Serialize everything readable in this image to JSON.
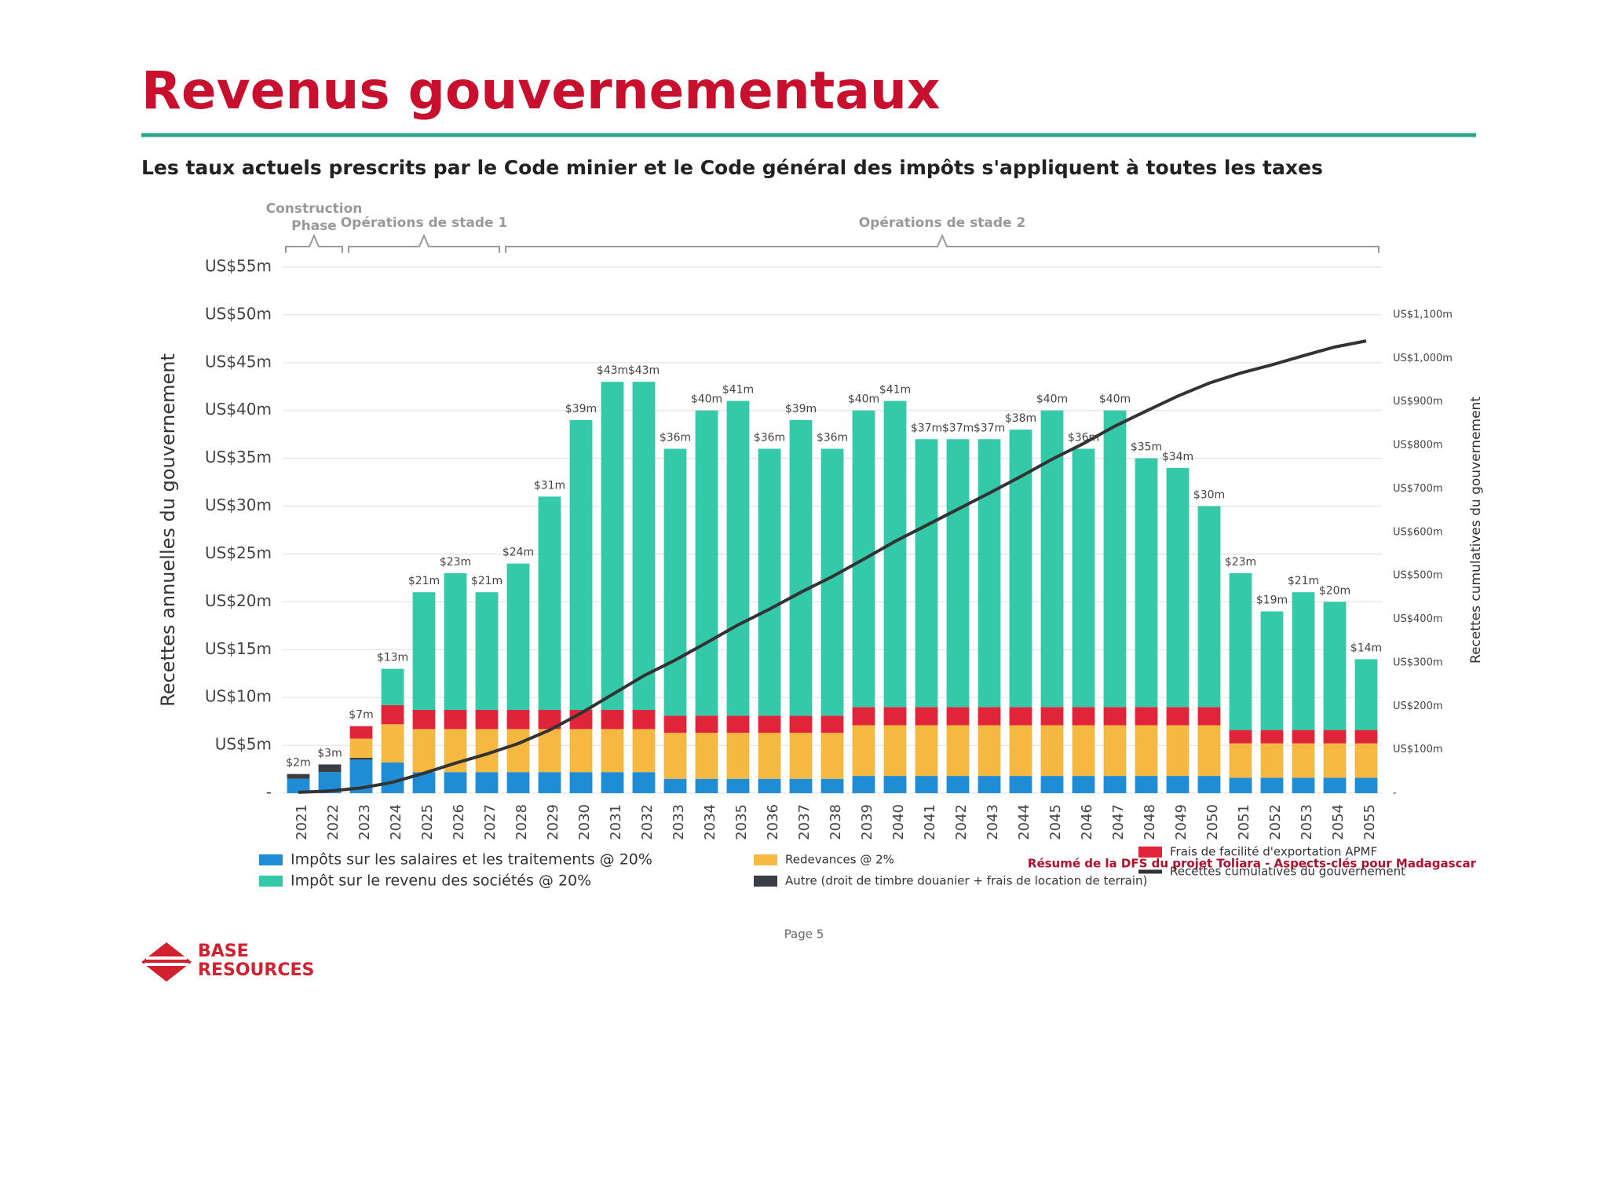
{
  "chart_data": {
    "type": "bar",
    "title": "Revenus gouvernementaux",
    "subtitle": "Les taux actuels prescrits par le Code minier et le Code général des impôts s'appliquent à toutes les taxes",
    "ylabel": "Recettes annuelles du gouvernement",
    "y2label": "Recettes cumulatives du gouvernement",
    "phases": [
      "Construction Phase",
      "Opérations de stade 1",
      "Opérations de stade 2"
    ],
    "categories": [
      "2021",
      "2022",
      "2023",
      "2024",
      "2025",
      "2026",
      "2027",
      "2028",
      "2029",
      "2030",
      "2031",
      "2032",
      "2033",
      "2034",
      "2035",
      "2036",
      "2037",
      "2038",
      "2039",
      "2040",
      "2041",
      "2042",
      "2043",
      "2044",
      "2045",
      "2046",
      "2047",
      "2048",
      "2049",
      "2050",
      "2051",
      "2052",
      "2053",
      "2054",
      "2055"
    ],
    "series": [
      {
        "name": "Impôts sur les salaires et les traitements @ 20%",
        "color": "#1f8dd6",
        "values": [
          1.5,
          2.2,
          3.5,
          3.2,
          2.2,
          2.2,
          2.2,
          2.2,
          2.2,
          2.2,
          2.2,
          2.2,
          1.5,
          1.5,
          1.5,
          1.5,
          1.5,
          1.5,
          1.8,
          1.8,
          1.8,
          1.8,
          1.8,
          1.8,
          1.8,
          1.8,
          1.8,
          1.8,
          1.8,
          1.8,
          1.6,
          1.6,
          1.6,
          1.6,
          1.6
        ]
      },
      {
        "name": "Autre (droit de timbre douanier + frais de location de terrain)",
        "color": "#3a3e44",
        "values": [
          0.5,
          0.8,
          0.2,
          0,
          0,
          0,
          0,
          0,
          0,
          0,
          0,
          0,
          0,
          0,
          0,
          0,
          0,
          0,
          0,
          0,
          0,
          0,
          0,
          0,
          0,
          0,
          0,
          0,
          0,
          0,
          0,
          0,
          0,
          0,
          0
        ]
      },
      {
        "name": "Redevances @ 2%",
        "color": "#f5b942",
        "values": [
          0,
          0,
          2,
          4,
          4.5,
          4.5,
          4.5,
          4.5,
          4.5,
          4.5,
          4.5,
          4.5,
          4.8,
          4.8,
          4.8,
          4.8,
          4.8,
          4.8,
          5.3,
          5.3,
          5.3,
          5.3,
          5.3,
          5.3,
          5.3,
          5.3,
          5.3,
          5.3,
          5.3,
          5.3,
          3.6,
          3.6,
          3.6,
          3.6,
          3.6
        ]
      },
      {
        "name": "Frais de facilité d'exportation APMF",
        "color": "#e0243a",
        "values": [
          0,
          0,
          1.3,
          2,
          2,
          2,
          2,
          2,
          2,
          2,
          2,
          2,
          1.8,
          1.8,
          1.8,
          1.8,
          1.8,
          1.8,
          1.9,
          1.9,
          1.9,
          1.9,
          1.9,
          1.9,
          1.9,
          1.9,
          1.9,
          1.9,
          1.9,
          1.9,
          1.4,
          1.4,
          1.4,
          1.4,
          1.4
        ]
      },
      {
        "name": "Impôt sur le revenu des sociétés @ 20%",
        "color": "#33c9a9",
        "values": [
          0,
          0,
          0,
          3.8,
          12.3,
          14.3,
          12.3,
          15.3,
          22.3,
          30.3,
          34.3,
          34.3,
          27.9,
          31.9,
          32.9,
          27.9,
          30.9,
          27.9,
          31,
          32,
          28,
          28,
          28,
          29,
          31,
          27,
          31,
          26,
          25,
          21,
          16.4,
          12.4,
          14.4,
          13.4,
          7.4
        ]
      },
      {
        "name": "Recettes cumulatives du gouvernement",
        "type": "line",
        "axis": "y2",
        "color": "#333333",
        "values": [
          2,
          5,
          12,
          25,
          46,
          69,
          90,
          114,
          145,
          184,
          227,
          270,
          306,
          346,
          387,
          423,
          462,
          498,
          538,
          579,
          616,
          653,
          690,
          728,
          768,
          804,
          844,
          879,
          913,
          943,
          966,
          985,
          1006,
          1026,
          1040
        ]
      }
    ],
    "totals": {
      "values": [
        2,
        3,
        7,
        13,
        21,
        23,
        21,
        24,
        31,
        39,
        43,
        43,
        36,
        40,
        41,
        36,
        39,
        36,
        40,
        41,
        37,
        37,
        37,
        38,
        40,
        36,
        40,
        35,
        34,
        30,
        23,
        19,
        21,
        20,
        14
      ],
      "value_labels": [
        "$2m",
        "$3m",
        "$7m",
        "$13m",
        "$21m",
        "$23m",
        "$21m",
        "$24m",
        "$31m",
        "$39m",
        "$43m",
        "$43m",
        "$36m",
        "$40m",
        "$41m",
        "$36m",
        "$39m",
        "$36m",
        "$40m",
        "$41m",
        "$37m",
        "$37m",
        "$37m",
        "$38m",
        "$40m",
        "$36m",
        "$40m",
        "$35m",
        "$34m",
        "$30m",
        "$23m",
        "$19m",
        "$21m",
        "$20m",
        "$14m"
      ]
    },
    "ylim": [
      0,
      55
    ],
    "yticks": [
      {
        "value": 0,
        "label": "-"
      },
      {
        "value": 5,
        "label": "US$5m"
      },
      {
        "value": 10,
        "label": "US$10m"
      },
      {
        "value": 15,
        "label": "US$15m"
      },
      {
        "value": 20,
        "label": "US$20m"
      },
      {
        "value": 25,
        "label": "US$25m"
      },
      {
        "value": 30,
        "label": "US$30m"
      },
      {
        "value": 35,
        "label": "US$35m"
      },
      {
        "value": 40,
        "label": "US$40m"
      },
      {
        "value": 45,
        "label": "US$45m"
      },
      {
        "value": 50,
        "label": "US$50m"
      },
      {
        "value": 55,
        "label": "US$55m"
      }
    ],
    "y2lim": [
      0,
      1210
    ],
    "y2ticks": [
      {
        "value": 0,
        "label": "-"
      },
      {
        "value": 100,
        "label": "US$100m"
      },
      {
        "value": 200,
        "label": "US$200m"
      },
      {
        "value": 300,
        "label": "US$300m"
      },
      {
        "value": 400,
        "label": "US$400m"
      },
      {
        "value": 500,
        "label": "US$500m"
      },
      {
        "value": 600,
        "label": "US$600m"
      },
      {
        "value": 700,
        "label": "US$700m"
      },
      {
        "value": 800,
        "label": "US$800m"
      },
      {
        "value": 900,
        "label": "US$900m"
      },
      {
        "value": 1000,
        "label": "US$1,000m"
      },
      {
        "value": 1100,
        "label": "US$1,100m"
      }
    ],
    "grid": true
  },
  "footer": "Résumé de la DFS du projet Toliara - Aspects-clés pour Madagascar",
  "page": "Page 5",
  "logo": [
    "BASE",
    "RESOURCES"
  ]
}
